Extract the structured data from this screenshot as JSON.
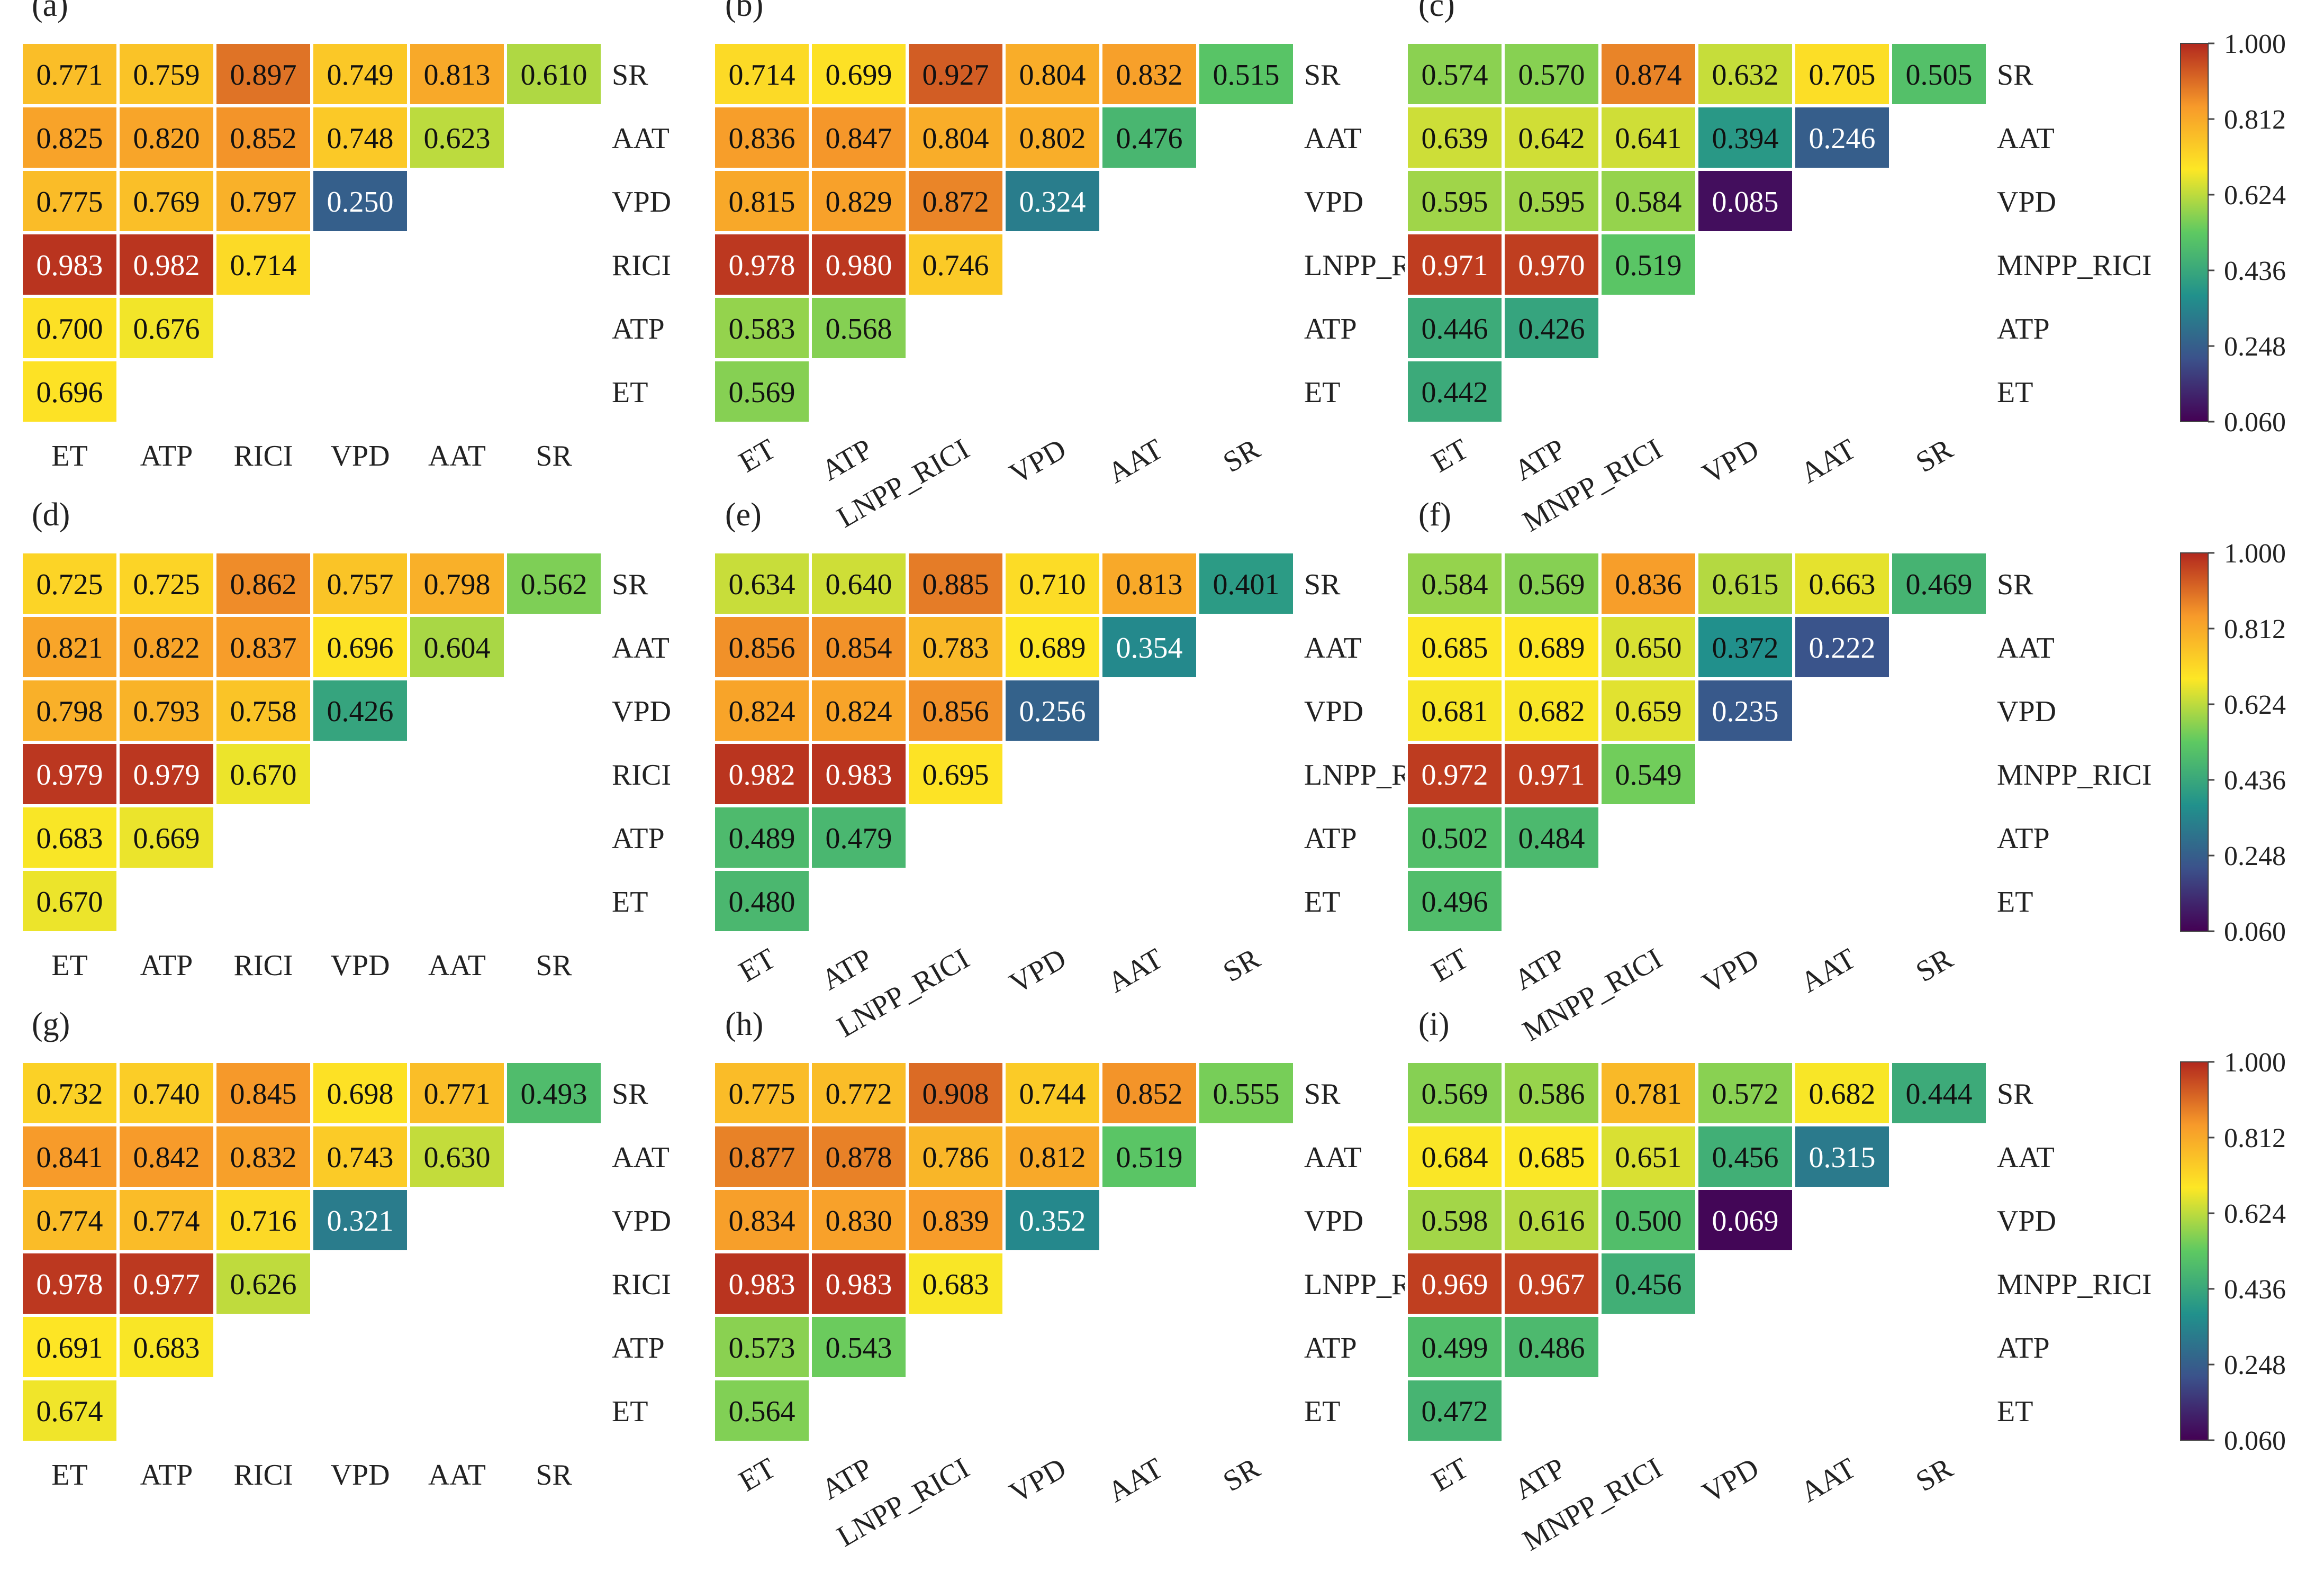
{
  "colorbar": {
    "min": 0.06,
    "max": 1.0,
    "ticks": [
      "1.000",
      "0.812",
      "0.624",
      "0.436",
      "0.248",
      "0.060"
    ],
    "stops": [
      "#440154",
      "#3b528b",
      "#21918c",
      "#5ec962",
      "#fde725",
      "#f79a2a",
      "#b2281e"
    ]
  },
  "chart_data": [
    {
      "type": "heatmap",
      "panel": "(a)",
      "variables": [
        "ET",
        "ATP",
        "RICI",
        "VPD",
        "AAT",
        "SR"
      ],
      "values": [
        [
          0.696
        ],
        [
          0.7,
          0.676
        ],
        [
          0.983,
          0.982,
          0.714
        ],
        [
          0.775,
          0.769,
          0.797,
          0.25
        ],
        [
          0.825,
          0.82,
          0.852,
          0.748,
          0.623
        ],
        [
          0.771,
          0.759,
          0.897,
          0.749,
          0.813,
          0.61
        ]
      ]
    },
    {
      "type": "heatmap",
      "panel": "(b)",
      "variables": [
        "ET",
        "ATP",
        "LNPP_RICI",
        "VPD",
        "AAT",
        "SR"
      ],
      "values": [
        [
          0.569
        ],
        [
          0.583,
          0.568
        ],
        [
          0.978,
          0.98,
          0.746
        ],
        [
          0.815,
          0.829,
          0.872,
          0.324
        ],
        [
          0.836,
          0.847,
          0.804,
          0.802,
          0.476
        ],
        [
          0.714,
          0.699,
          0.927,
          0.804,
          0.832,
          0.515
        ]
      ]
    },
    {
      "type": "heatmap",
      "panel": "(c)",
      "variables": [
        "ET",
        "ATP",
        "MNPP_RICI",
        "VPD",
        "AAT",
        "SR"
      ],
      "values": [
        [
          0.442
        ],
        [
          0.446,
          0.426
        ],
        [
          0.971,
          0.97,
          0.519
        ],
        [
          0.595,
          0.595,
          0.584,
          0.085
        ],
        [
          0.639,
          0.642,
          0.641,
          0.394,
          0.246
        ],
        [
          0.574,
          0.57,
          0.874,
          0.632,
          0.705,
          0.505
        ]
      ]
    },
    {
      "type": "heatmap",
      "panel": "(d)",
      "variables": [
        "ET",
        "ATP",
        "RICI",
        "VPD",
        "AAT",
        "SR"
      ],
      "values": [
        [
          0.67
        ],
        [
          0.683,
          0.669
        ],
        [
          0.979,
          0.979,
          0.67
        ],
        [
          0.798,
          0.793,
          0.758,
          0.426
        ],
        [
          0.821,
          0.822,
          0.837,
          0.696,
          0.604
        ],
        [
          0.725,
          0.725,
          0.862,
          0.757,
          0.798,
          0.562
        ]
      ]
    },
    {
      "type": "heatmap",
      "panel": "(e)",
      "variables": [
        "ET",
        "ATP",
        "LNPP_RICI",
        "VPD",
        "AAT",
        "SR"
      ],
      "values": [
        [
          0.48
        ],
        [
          0.489,
          0.479
        ],
        [
          0.982,
          0.983,
          0.695
        ],
        [
          0.824,
          0.824,
          0.856,
          0.256
        ],
        [
          0.856,
          0.854,
          0.783,
          0.689,
          0.354
        ],
        [
          0.634,
          0.64,
          0.885,
          0.71,
          0.813,
          0.401
        ]
      ]
    },
    {
      "type": "heatmap",
      "panel": "(f)",
      "variables": [
        "ET",
        "ATP",
        "MNPP_RICI",
        "VPD",
        "AAT",
        "SR"
      ],
      "values": [
        [
          0.496
        ],
        [
          0.502,
          0.484
        ],
        [
          0.972,
          0.971,
          0.549
        ],
        [
          0.681,
          0.682,
          0.659,
          0.235
        ],
        [
          0.685,
          0.689,
          0.65,
          0.372,
          0.222
        ],
        [
          0.584,
          0.569,
          0.836,
          0.615,
          0.663,
          0.469
        ]
      ]
    },
    {
      "type": "heatmap",
      "panel": "(g)",
      "variables": [
        "ET",
        "ATP",
        "RICI",
        "VPD",
        "AAT",
        "SR"
      ],
      "values": [
        [
          0.674
        ],
        [
          0.691,
          0.683
        ],
        [
          0.978,
          0.977,
          0.626
        ],
        [
          0.774,
          0.774,
          0.716,
          0.321
        ],
        [
          0.841,
          0.842,
          0.832,
          0.743,
          0.63
        ],
        [
          0.732,
          0.74,
          0.845,
          0.698,
          0.771,
          0.493
        ]
      ]
    },
    {
      "type": "heatmap",
      "panel": "(h)",
      "variables": [
        "ET",
        "ATP",
        "LNPP_RICI",
        "VPD",
        "AAT",
        "SR"
      ],
      "values": [
        [
          0.564
        ],
        [
          0.573,
          0.543
        ],
        [
          0.983,
          0.983,
          0.683
        ],
        [
          0.834,
          0.83,
          0.839,
          0.352
        ],
        [
          0.877,
          0.878,
          0.786,
          0.812,
          0.519
        ],
        [
          0.775,
          0.772,
          0.908,
          0.744,
          0.852,
          0.555
        ]
      ]
    },
    {
      "type": "heatmap",
      "panel": "(i)",
      "variables": [
        "ET",
        "ATP",
        "MNPP_RICI",
        "VPD",
        "AAT",
        "SR"
      ],
      "values": [
        [
          0.472
        ],
        [
          0.499,
          0.486
        ],
        [
          0.969,
          0.967,
          0.456
        ],
        [
          0.598,
          0.616,
          0.5,
          0.069
        ],
        [
          0.684,
          0.685,
          0.651,
          0.456,
          0.315
        ],
        [
          0.569,
          0.586,
          0.781,
          0.572,
          0.682,
          0.444
        ]
      ]
    }
  ]
}
